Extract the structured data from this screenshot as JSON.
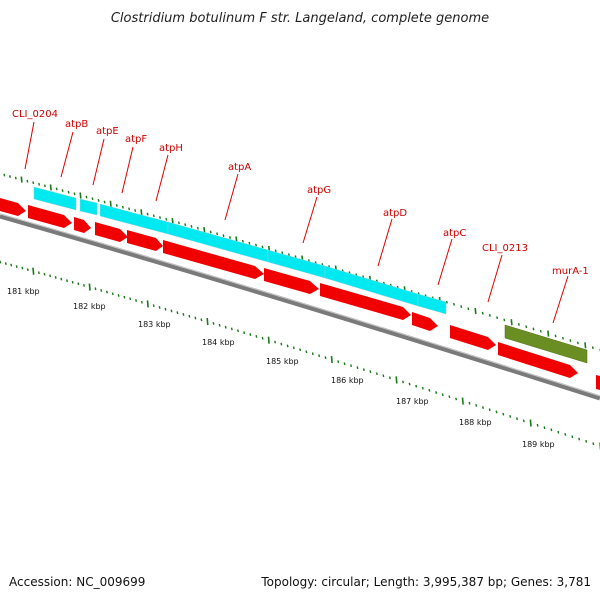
{
  "title": "Clostridium botulinum F str. Langeland, complete genome",
  "footer": {
    "accession": "Accession: NC_009699",
    "topology": "Topology: circular; Length: 3,995,387 bp; Genes: 3,781"
  },
  "colors": {
    "background": "#ffffff",
    "backbone": "#808080",
    "cds_forward": "#f00000",
    "cds_reverse": "#00e8f0",
    "rna_feature": "#6b8e23",
    "tick": "#1a7a1a",
    "label": "#cc0000",
    "title": "#222222"
  },
  "genes": [
    {
      "label": "CLI_0204",
      "track": "reverse"
    },
    {
      "label": "atpB",
      "track": "reverse"
    },
    {
      "label": "atpE",
      "track": "reverse"
    },
    {
      "label": "atpF",
      "track": "reverse"
    },
    {
      "label": "atpH",
      "track": "reverse"
    },
    {
      "label": "atpA",
      "track": "reverse"
    },
    {
      "label": "atpG",
      "track": "reverse"
    },
    {
      "label": "atpD",
      "track": "reverse"
    },
    {
      "label": "atpC",
      "track": "reverse"
    },
    {
      "label": "CLI_0213",
      "track": "forward"
    },
    {
      "label": "murA-1",
      "track": "other"
    }
  ],
  "kbp_labels": [
    "181 kbp",
    "182 kbp",
    "183 kbp",
    "184 kbp",
    "185 kbp",
    "186 kbp",
    "187 kbp",
    "188 kbp",
    "189 kbp"
  ]
}
